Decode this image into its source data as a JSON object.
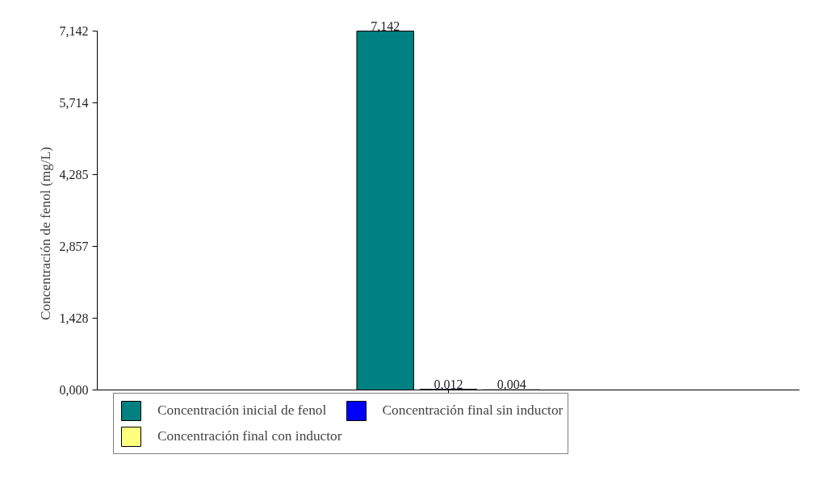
{
  "chart_data": {
    "type": "bar",
    "ylabel": "Concentración de fenol (mg/L)",
    "categories": [
      null
    ],
    "series": [
      {
        "name": "Concentración inicial de fenol",
        "color": "#008080",
        "values": [
          7.142
        ],
        "value_labels": [
          "7,142"
        ]
      },
      {
        "name": "Concentración final sin inductor",
        "color": "#0000ff",
        "values": [
          0.012
        ],
        "value_labels": [
          "0,012"
        ]
      },
      {
        "name": "Concentración final con inductor",
        "color": "#ffff80",
        "values": [
          0.004
        ],
        "value_labels": [
          "0,004"
        ]
      }
    ],
    "ylim": [
      0,
      7.142
    ],
    "yticks": [
      {
        "value": 0,
        "label": "0,000"
      },
      {
        "value": 1.428,
        "label": "1,428"
      },
      {
        "value": 2.857,
        "label": "2,857"
      },
      {
        "value": 4.285,
        "label": "4,285"
      },
      {
        "value": 5.714,
        "label": "5,714"
      },
      {
        "value": 7.142,
        "label": "7,142"
      }
    ],
    "grid": false,
    "legend": "bottom"
  }
}
